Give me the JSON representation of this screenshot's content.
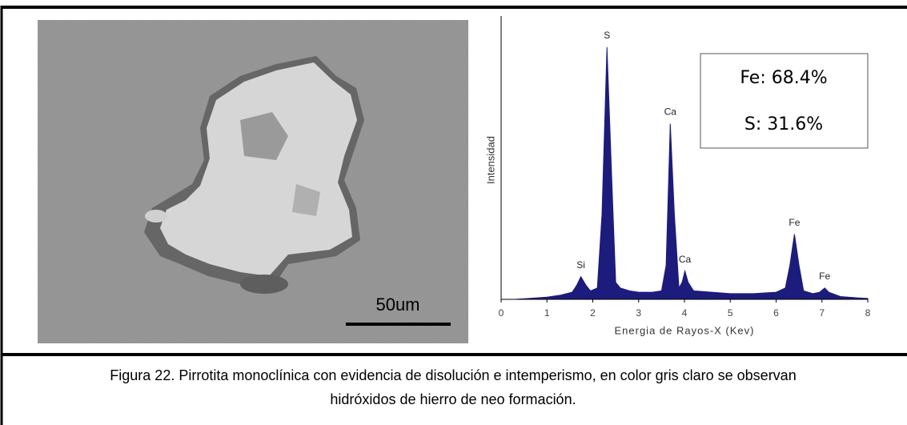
{
  "figure": {
    "scale_label": "50um",
    "caption": [
      "Figura 22. Pirrotita monoclínica con evidencia de disolución e intemperismo, en color gris claro se observan",
      "hidróxidos de hierro de neo formación."
    ]
  },
  "chart_data": {
    "type": "area",
    "x_label": "Energia de Rayos-X (Kev)",
    "y_label": "Intensidad",
    "x": [
      0,
      0.3,
      0.6,
      1.0,
      1.3,
      1.55,
      1.65,
      1.74,
      1.85,
      1.95,
      2.1,
      2.2,
      2.31,
      2.42,
      2.5,
      2.6,
      2.8,
      3.0,
      3.3,
      3.5,
      3.6,
      3.69,
      3.78,
      3.88,
      3.95,
      4.01,
      4.08,
      4.2,
      4.6,
      5.0,
      5.5,
      6.0,
      6.2,
      6.3,
      6.4,
      6.5,
      6.6,
      6.8,
      6.95,
      7.06,
      7.15,
      7.4,
      7.8,
      8.0
    ],
    "values": [
      0,
      0,
      0.3,
      0.8,
      1.5,
      2.5,
      5,
      8,
      5,
      3,
      4,
      30,
      89,
      40,
      6,
      4,
      3,
      2.5,
      2.5,
      3,
      12,
      62,
      30,
      4,
      6,
      10,
      6,
      3,
      2.5,
      2,
      2,
      2.5,
      4,
      12,
      23,
      12,
      3,
      2,
      2.5,
      4,
      2.5,
      1,
      0.5,
      0.3
    ],
    "color": "#1c1c7c",
    "xlim": [
      0,
      8
    ],
    "xticks": [
      0,
      1,
      2,
      3,
      4,
      5,
      6,
      7,
      8
    ],
    "ylim": [
      0,
      100
    ],
    "peak_labels": [
      {
        "label": "Si",
        "x": 1.74
      },
      {
        "label": "S",
        "x": 2.31
      },
      {
        "label": "Ca",
        "x": 3.69
      },
      {
        "label": "Ca",
        "x": 4.01
      },
      {
        "label": "Fe",
        "x": 6.4
      },
      {
        "label": "Fe",
        "x": 7.06
      }
    ],
    "annotations": [
      "Fe: 68.4%",
      "S: 31.6%"
    ]
  }
}
